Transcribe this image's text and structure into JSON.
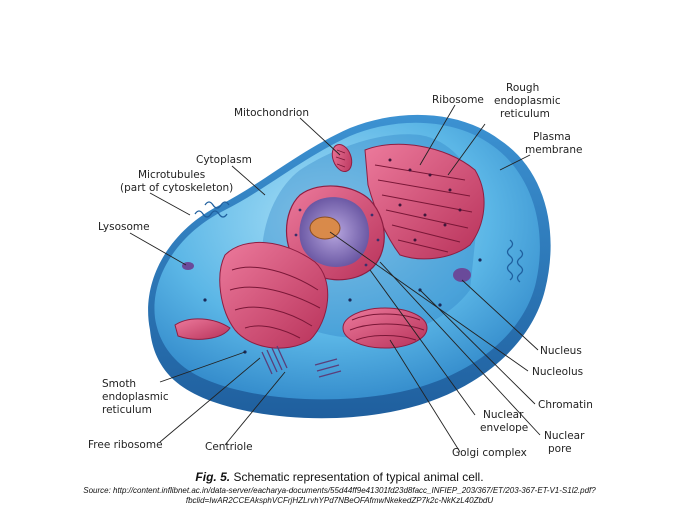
{
  "labels": {
    "ribosome": "Ribosome",
    "rough_er": [
      "Rough",
      "endoplasmic",
      "reticulum"
    ],
    "mitochondrion": "Mitochondrion",
    "plasma_membrane": [
      "Plasma",
      "membrane"
    ],
    "cytoplasm": "Cytoplasm",
    "microtubules": [
      "Microtubules",
      "(part of cytoskeleton)"
    ],
    "lysosome": "Lysosome",
    "nucleus": "Nucleus",
    "nucleolus": "Nucleolus",
    "smooth_er": [
      "Smoth",
      "endoplasmic",
      "reticulum"
    ],
    "chromatin": "Chromatin",
    "nuclear_envelope": [
      "Nuclear",
      "envelope"
    ],
    "nuclear_pore": [
      "Nuclear",
      "pore"
    ],
    "free_ribosome": "Free ribosome",
    "centriole": "Centriole",
    "golgi_complex": "Golgi complex"
  },
  "caption": {
    "fig_number": "Fig. 5.",
    "fig_text": "Schematic representation of typical animal cell.",
    "source": "Source: http://content.inflibnet.ac.in/data-server/eacharya-documents/55d44ff9e41301fd23d8facc_INFIEP_203/367/ET/203-367-ET-V1-S1l2.pdf?fbclid=IwAR2CCEAksphVCFrjHZLrvhYPd7NBeOFAfmwNkekedZP7k2c-NkKzL40ZbdU"
  },
  "colors": {
    "cell_blue": "#3a9ad9",
    "cell_light": "#8fd0f2",
    "organelle_pink": "#d2466e",
    "nucleus_purple": "#7a64b0",
    "nucleolus_orange": "#d98a4a"
  }
}
